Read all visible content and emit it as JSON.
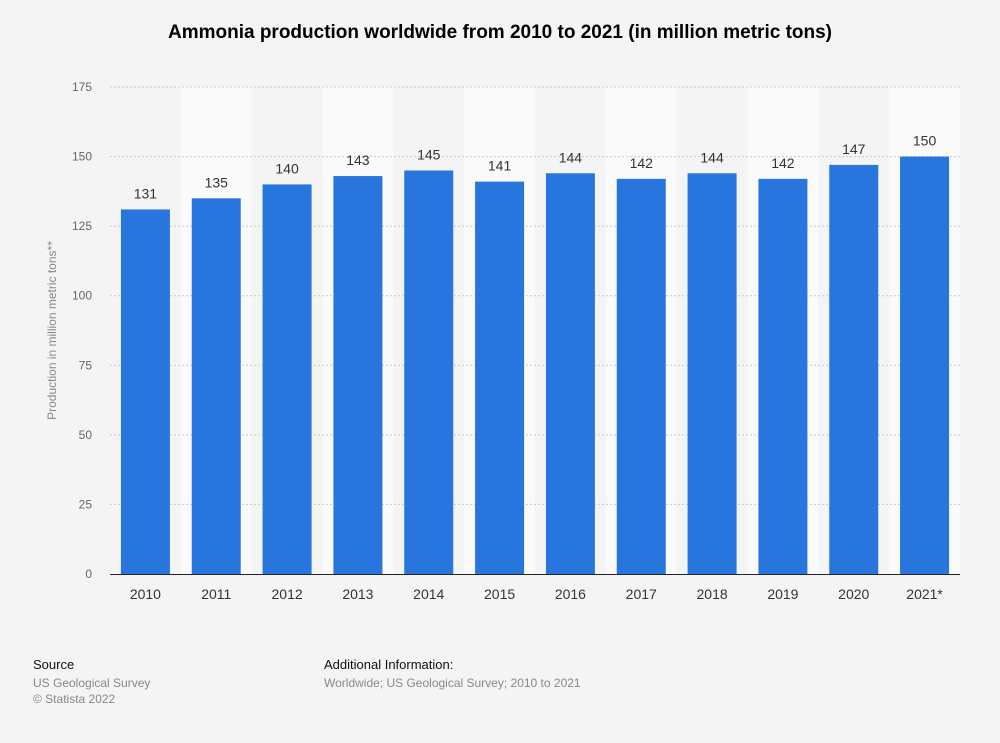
{
  "chart_data": {
    "type": "bar",
    "title": "Ammonia production worldwide from 2010 to 2021 (in million metric tons)",
    "xlabel": "",
    "ylabel": "Production in million metric tons**",
    "categories": [
      "2010",
      "2011",
      "2012",
      "2013",
      "2014",
      "2015",
      "2016",
      "2017",
      "2018",
      "2019",
      "2020",
      "2021*"
    ],
    "values": [
      131,
      135,
      140,
      143,
      145,
      141,
      144,
      142,
      144,
      142,
      147,
      150
    ],
    "value_labels": [
      "131",
      "135",
      "140",
      "143",
      "145",
      "141",
      "144",
      "142",
      "144",
      "142",
      "147",
      "150"
    ],
    "ylim": [
      0,
      175
    ],
    "yticks": [
      0,
      25,
      50,
      75,
      100,
      125,
      150,
      175
    ],
    "ytick_labels": [
      "0",
      "25",
      "50",
      "75",
      "100",
      "125",
      "150",
      "175"
    ],
    "grid": true,
    "bar_color": "#2876dd"
  },
  "footer": {
    "source_heading": "Source",
    "source_lines": [
      "US Geological Survey",
      "© Statista 2022"
    ],
    "additional_heading": "Additional Information:",
    "additional_text": "Worldwide; US Geological Survey; 2010 to 2021"
  }
}
